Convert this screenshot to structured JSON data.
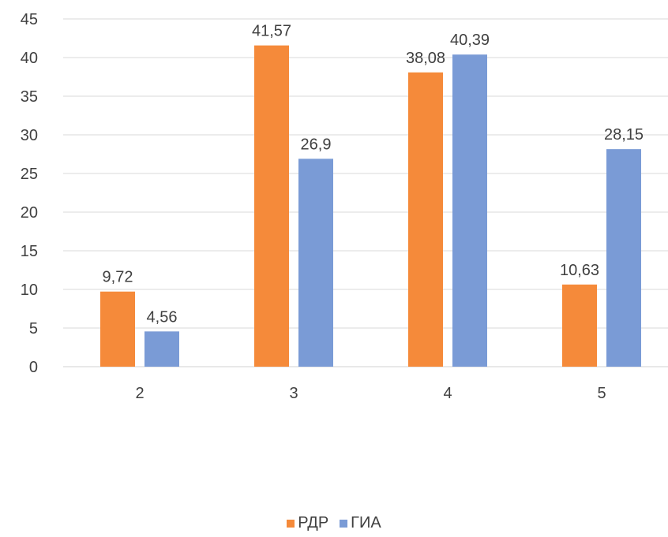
{
  "chart_data": {
    "type": "bar",
    "categories": [
      "2",
      "3",
      "4",
      "5"
    ],
    "series": [
      {
        "name": "РДР",
        "color": "#F58A3A",
        "values": [
          9.72,
          41.57,
          38.08,
          10.63
        ],
        "labels": [
          "9,72",
          "41,57",
          "38,08",
          "10,63"
        ]
      },
      {
        "name": "ГИА",
        "color": "#7A9BD6",
        "values": [
          4.56,
          26.9,
          40.39,
          28.15
        ],
        "labels": [
          "4,56",
          "26,9",
          "40,39",
          "28,15"
        ]
      }
    ],
    "title": "",
    "xlabel": "",
    "ylabel": "",
    "ylim": [
      0,
      45
    ],
    "yticks": [
      0,
      5,
      10,
      15,
      20,
      25,
      30,
      35,
      40,
      45
    ],
    "grid": true,
    "legend_position": "bottom"
  }
}
